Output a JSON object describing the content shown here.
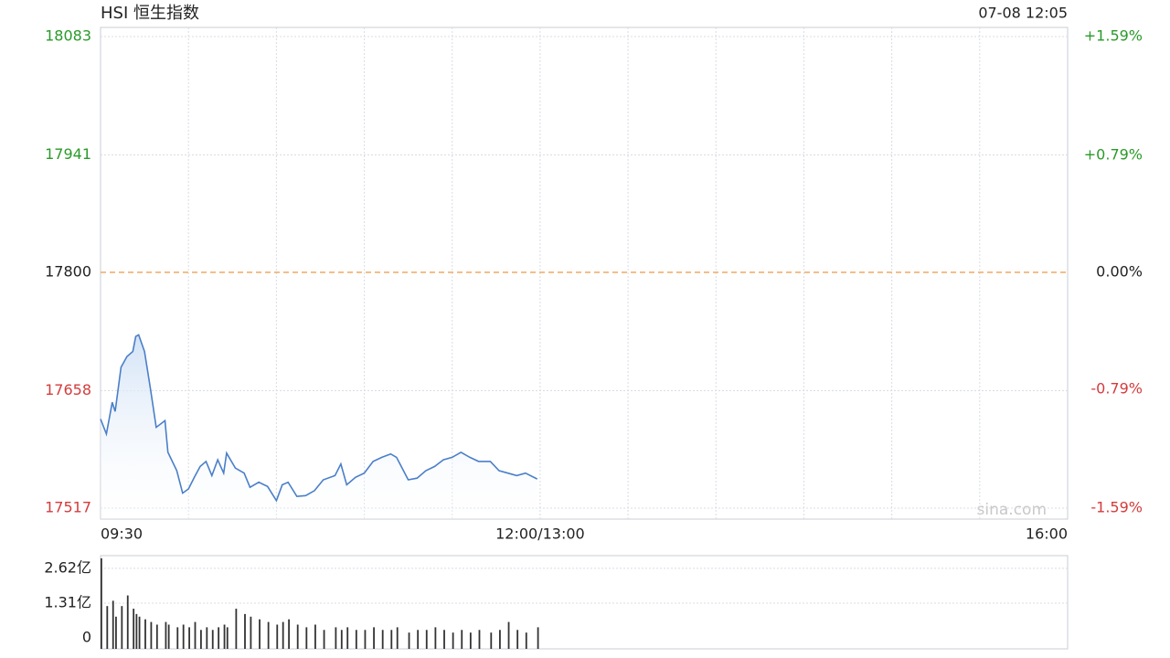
{
  "chart_data": [
    {
      "type": "line",
      "title": "HSI 恒生指数",
      "timestamp": "07-08 12:05",
      "watermark": "sina.com",
      "color": "#4a7fc8",
      "fill_color": "#dce8f7",
      "up_color": "#2a9a2a",
      "down_color": "#d43c3c",
      "reference": 17800,
      "reference_color": "#f0a860",
      "x": [
        0,
        2,
        4,
        5,
        7,
        9,
        11,
        12,
        13,
        15,
        17,
        19,
        22,
        23,
        26,
        28,
        30,
        32,
        34,
        36,
        38,
        40,
        42,
        43,
        46,
        49,
        51,
        54,
        57,
        60,
        62,
        64,
        67,
        70,
        73,
        76,
        80,
        82,
        84,
        87,
        90,
        93,
        96,
        99,
        101,
        105,
        108,
        111,
        114,
        117,
        120,
        123,
        126,
        129,
        133,
        136,
        139,
        142,
        145,
        149
      ],
      "values": [
        17624,
        17606,
        17644,
        17633,
        17686,
        17699,
        17705,
        17723,
        17725,
        17705,
        17661,
        17614,
        17622,
        17584,
        17562,
        17535,
        17540,
        17554,
        17567,
        17573,
        17556,
        17575,
        17559,
        17583,
        17565,
        17559,
        17542,
        17548,
        17543,
        17526,
        17545,
        17548,
        17531,
        17532,
        17538,
        17551,
        17556,
        17570,
        17545,
        17554,
        17559,
        17573,
        17578,
        17582,
        17578,
        17551,
        17553,
        17562,
        17567,
        17575,
        17578,
        17584,
        17578,
        17573,
        17573,
        17562,
        17559,
        17556,
        17559,
        17552
      ],
      "xlim": [
        0,
        330
      ],
      "xticks": [
        {
          "value": 0,
          "label": "09:30"
        },
        {
          "value": 30,
          "label": null
        },
        {
          "value": 60,
          "label": null
        },
        {
          "value": 90,
          "label": null
        },
        {
          "value": 120,
          "label": null
        },
        {
          "value": 150,
          "label": "12:00/13:00"
        },
        {
          "value": 180,
          "label": null
        },
        {
          "value": 210,
          "label": null
        },
        {
          "value": 240,
          "label": null
        },
        {
          "value": 270,
          "label": null
        },
        {
          "value": 300,
          "label": null
        },
        {
          "value": 330,
          "label": "16:00"
        }
      ],
      "ylim": [
        17517,
        18083
      ],
      "yticks": [
        18083,
        17941,
        17800,
        17658,
        17517
      ],
      "y2lim": [
        -1.59,
        1.59
      ],
      "y2ticks": [
        {
          "value": 1.59,
          "label": "+1.59%"
        },
        {
          "value": 0.79,
          "label": "+0.79%"
        },
        {
          "value": 0,
          "label": "0.00%"
        },
        {
          "value": -0.79,
          "label": "-0.79%"
        },
        {
          "value": -1.59,
          "label": "-1.59%"
        }
      ],
      "grid": true
    },
    {
      "type": "bar",
      "color": "#333333",
      "x": [
        0,
        2,
        4,
        5,
        7,
        9,
        11,
        12,
        13,
        15,
        17,
        19,
        22,
        23,
        26,
        28,
        30,
        32,
        34,
        36,
        38,
        40,
        42,
        43,
        46,
        49,
        51,
        54,
        57,
        60,
        62,
        64,
        67,
        70,
        73,
        76,
        80,
        82,
        84,
        87,
        90,
        93,
        96,
        99,
        101,
        105,
        108,
        111,
        114,
        117,
        120,
        123,
        126,
        129,
        133,
        136,
        139,
        142,
        145,
        149
      ],
      "values": [
        3.0,
        1.2,
        1.4,
        0.8,
        1.2,
        1.6,
        1.1,
        0.9,
        0.8,
        0.7,
        0.6,
        0.5,
        0.6,
        0.5,
        0.4,
        0.5,
        0.4,
        0.6,
        0.3,
        0.4,
        0.3,
        0.4,
        0.5,
        0.4,
        1.1,
        0.9,
        0.8,
        0.7,
        0.6,
        0.5,
        0.6,
        0.7,
        0.5,
        0.4,
        0.5,
        0.3,
        0.4,
        0.3,
        0.4,
        0.3,
        0.3,
        0.4,
        0.3,
        0.3,
        0.4,
        0.2,
        0.3,
        0.3,
        0.4,
        0.3,
        0.2,
        0.3,
        0.2,
        0.3,
        0.2,
        0.3,
        0.6,
        0.3,
        0.2,
        0.4
      ],
      "xlim": [
        0,
        330
      ],
      "ylim": [
        0,
        3.1
      ],
      "yticks": [
        {
          "value": 2.62,
          "label": "2.62亿"
        },
        {
          "value": 1.31,
          "label": "1.31亿"
        },
        0
      ],
      "grid": true
    }
  ]
}
